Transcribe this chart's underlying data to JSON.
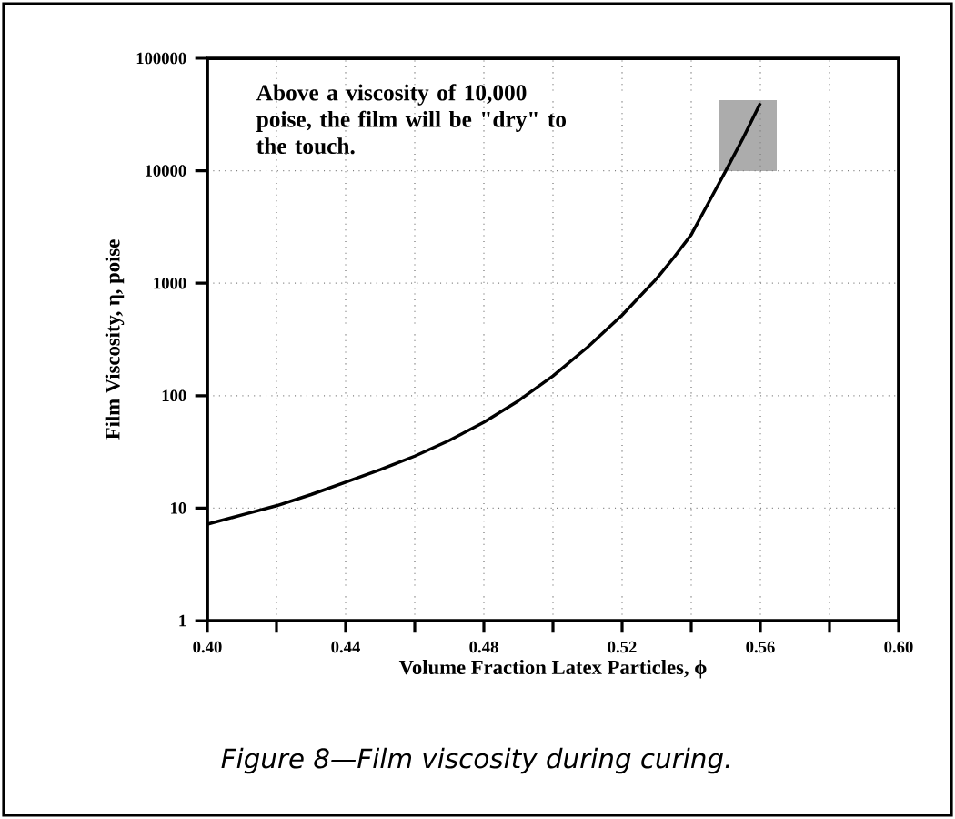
{
  "chart_data": {
    "type": "line",
    "xlabel": "Volume Fraction Latex Particles, ϕ",
    "ylabel": "Film Viscosity, η, poise",
    "x": [
      0.4,
      0.41,
      0.42,
      0.43,
      0.44,
      0.45,
      0.46,
      0.47,
      0.48,
      0.49,
      0.5,
      0.51,
      0.52,
      0.53,
      0.535,
      0.54,
      0.545,
      0.55,
      0.555,
      0.56
    ],
    "series": [
      {
        "color": "#000000",
        "line_style": "solid",
        "values": [
          7.2,
          8.7,
          10.5,
          13.2,
          17,
          22,
          29,
          40,
          58,
          90,
          150,
          270,
          520,
          1100,
          1700,
          2700,
          5200,
          10000,
          19500,
          40000
        ]
      }
    ],
    "xlim": [
      0.4,
      0.6
    ],
    "xticks": [
      {
        "value": 0.4,
        "label": "0.40"
      },
      {
        "value": 0.42,
        "label": null
      },
      {
        "value": 0.44,
        "label": "0.44"
      },
      {
        "value": 0.46,
        "label": null
      },
      {
        "value": 0.48,
        "label": "0.48"
      },
      {
        "value": 0.5,
        "label": null
      },
      {
        "value": 0.52,
        "label": "0.52"
      },
      {
        "value": 0.54,
        "label": null
      },
      {
        "value": 0.56,
        "label": "0.56"
      },
      {
        "value": 0.58,
        "label": null
      },
      {
        "value": 0.6,
        "label": "0.60"
      }
    ],
    "ylim": [
      1,
      100000
    ],
    "yticks": [
      1,
      10,
      100,
      1000,
      10000,
      100000
    ],
    "log": "y",
    "grid": true,
    "annotations": [
      "Above a viscosity of 10,000 poise, the film will be \"dry\" to the touch.",
      "Figure 8—Film viscosity during curing."
    ]
  }
}
